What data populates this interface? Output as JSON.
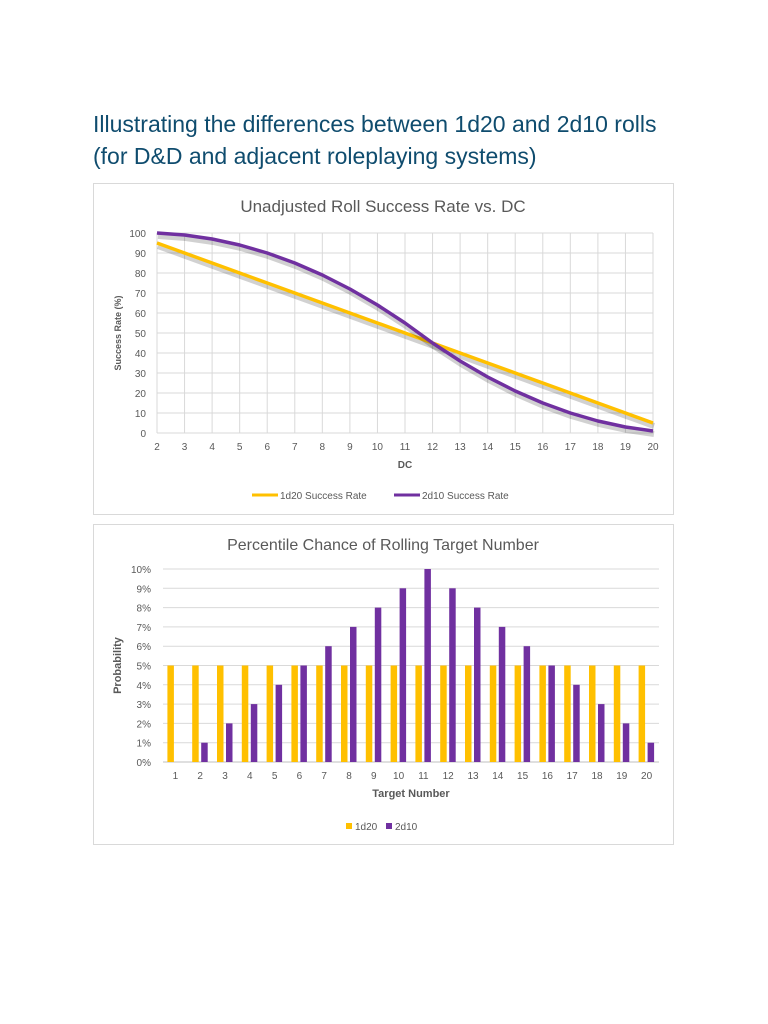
{
  "page": {
    "title_line1": "Illustrating the differences between 1d20 and 2d10 rolls",
    "title_line2": "(for D&D and adjacent roleplaying systems)"
  },
  "chart_data": [
    {
      "type": "line",
      "title": "Unadjusted Roll Success Rate vs. DC",
      "xlabel": "DC",
      "ylabel": "Success Rate (%)",
      "x": [
        2,
        3,
        4,
        5,
        6,
        7,
        8,
        9,
        10,
        11,
        12,
        13,
        14,
        15,
        16,
        17,
        18,
        19,
        20
      ],
      "xlim": [
        2,
        20
      ],
      "ylim": [
        0,
        100
      ],
      "yticks": [
        0,
        10,
        20,
        30,
        40,
        50,
        60,
        70,
        80,
        90,
        100
      ],
      "grid": true,
      "legend": "bottom",
      "series": [
        {
          "name": "1d20 Success Rate",
          "color": "#FFC000",
          "values": [
            95,
            90,
            85,
            80,
            75,
            70,
            65,
            60,
            55,
            50,
            45,
            40,
            35,
            30,
            25,
            20,
            15,
            10,
            5
          ]
        },
        {
          "name": "2d10 Success Rate",
          "color": "#7030A0",
          "values": [
            100,
            99,
            97,
            94,
            90,
            85,
            79,
            72,
            64,
            55,
            45,
            36,
            28,
            21,
            15,
            10,
            6,
            3,
            1
          ]
        }
      ]
    },
    {
      "type": "bar",
      "title": "Percentile Chance of Rolling Target Number",
      "xlabel": "Target Number",
      "ylabel": "Probability",
      "categories": [
        "1",
        "2",
        "3",
        "4",
        "5",
        "6",
        "7",
        "8",
        "9",
        "10",
        "11",
        "12",
        "13",
        "14",
        "15",
        "16",
        "17",
        "18",
        "19",
        "20"
      ],
      "ylim": [
        0,
        10
      ],
      "yticks": [
        "0%",
        "1%",
        "2%",
        "3%",
        "4%",
        "5%",
        "6%",
        "7%",
        "8%",
        "9%",
        "10%"
      ],
      "grid": true,
      "legend": "bottom",
      "series": [
        {
          "name": "1d20",
          "color": "#FFC000",
          "values": [
            5,
            5,
            5,
            5,
            5,
            5,
            5,
            5,
            5,
            5,
            5,
            5,
            5,
            5,
            5,
            5,
            5,
            5,
            5,
            5
          ]
        },
        {
          "name": "2d10",
          "color": "#7030A0",
          "values": [
            0,
            1,
            2,
            3,
            4,
            5,
            6,
            7,
            8,
            9,
            10,
            9,
            8,
            7,
            6,
            5,
            4,
            3,
            2,
            1
          ]
        }
      ]
    }
  ]
}
